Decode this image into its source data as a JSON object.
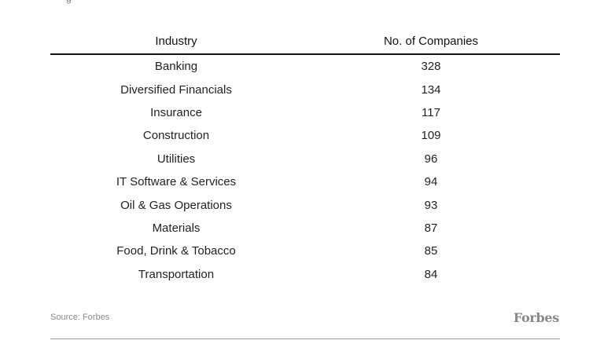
{
  "table": {
    "headers": [
      "Industry",
      "No. of Companies"
    ],
    "rows": [
      [
        "Banking",
        "328"
      ],
      [
        "Diversified Financials",
        "134"
      ],
      [
        "Insurance",
        "117"
      ],
      [
        "Construction",
        "109"
      ],
      [
        "Utilities",
        "96"
      ],
      [
        "IT Software & Services",
        "94"
      ],
      [
        "Oil & Gas Operations",
        "93"
      ],
      [
        "Materials",
        "87"
      ],
      [
        "Food, Drink & Tobacco",
        "85"
      ],
      [
        "Transportation",
        "84"
      ]
    ]
  },
  "chart_data": {
    "type": "table",
    "columns": [
      "Industry",
      "No. of Companies"
    ],
    "categories": [
      "Banking",
      "Diversified Financials",
      "Insurance",
      "Construction",
      "Utilities",
      "IT Software & Services",
      "Oil & Gas Operations",
      "Materials",
      "Food, Drink & Tobacco",
      "Transportation"
    ],
    "values": [
      328,
      134,
      117,
      109,
      96,
      94,
      93,
      87,
      85,
      84
    ]
  },
  "footer": {
    "source": "Source: Forbes",
    "brand": "Forbes"
  }
}
